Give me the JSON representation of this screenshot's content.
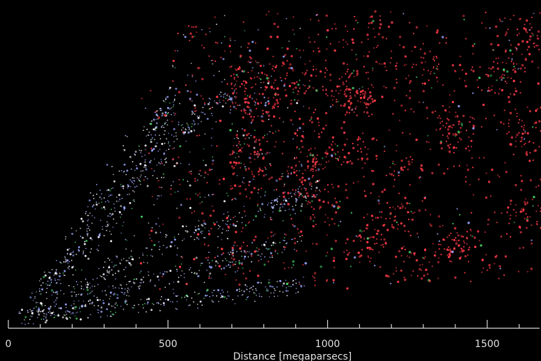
{
  "chart_data": {
    "type": "scatter",
    "title": "",
    "xlabel": "Distance [megaparsecs]",
    "ylabel": "",
    "xlim": [
      0,
      1670
    ],
    "x_ticks_major": [
      0,
      500,
      1000,
      1500
    ],
    "x_tick_labels": [
      "0",
      "500",
      "1000",
      "1500"
    ],
    "x_ticks_minor_step": 100,
    "grid": false,
    "legend": "none",
    "background_color": "#000000",
    "axis_color": "#d8d8d8",
    "series": [
      {
        "color": "#f8f6ff",
        "x_range": [
          0,
          700
        ]
      },
      {
        "color": "#9aa6ff",
        "x_range": [
          0,
          760
        ]
      },
      {
        "color": "#ff3b48",
        "x_range": [
          450,
          1670
        ]
      },
      {
        "color": "#46d46a",
        "x_range": [
          0,
          1670
        ]
      }
    ]
  }
}
